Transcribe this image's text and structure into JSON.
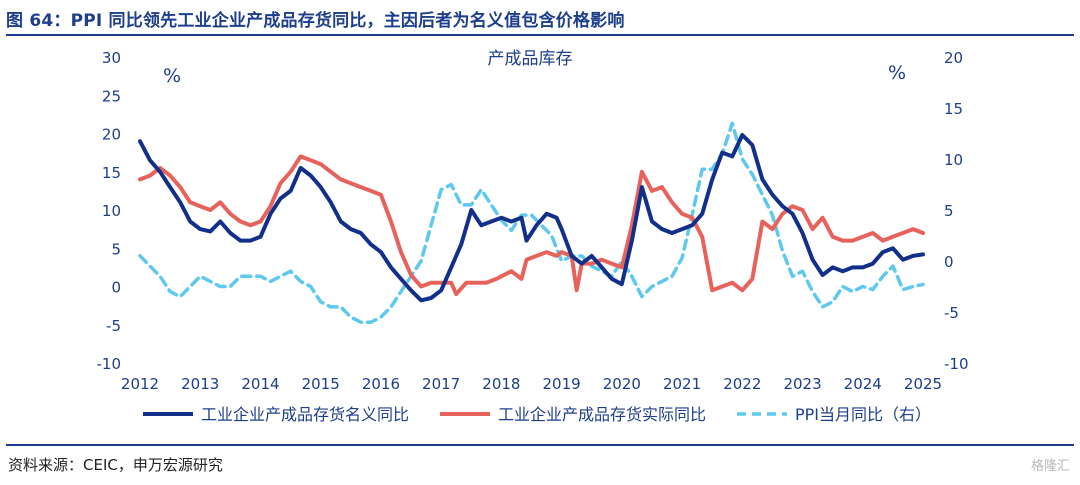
{
  "figure_title": "图 64：PPI 同比领先工业企业产成品存货同比，主因后者为名义值包含价格影响",
  "source": "资料来源：CEIC，申万宏源研究",
  "watermark": "格隆汇",
  "colors": {
    "accent": "#1d3e8a",
    "nominal": "#12308a",
    "real": "#e8625c",
    "ppi": "#5ec8ee"
  },
  "chart_data": {
    "type": "line",
    "title": "产成品库存",
    "left_unit": "%",
    "right_unit": "%",
    "x_axis": {
      "type": "date",
      "range": [
        "2012-01",
        "2025-01"
      ],
      "tick_labels": [
        "2012",
        "2013",
        "2014",
        "2015",
        "2016",
        "2017",
        "2018",
        "2019",
        "2020",
        "2021",
        "2022",
        "2023",
        "2024",
        "2025"
      ]
    },
    "y_left": {
      "range": [
        -10,
        30
      ],
      "ticks": [
        -10,
        -5,
        0,
        5,
        10,
        15,
        20,
        25,
        30
      ]
    },
    "y_right": {
      "range": [
        -10,
        20
      ],
      "ticks": [
        -10,
        -5,
        0,
        5,
        10,
        15,
        20
      ]
    },
    "grid": false,
    "legend_position": "bottom",
    "series": [
      {
        "name": "工业企业产成品存货名义同比",
        "axis": "left",
        "style": "solid",
        "points": [
          [
            "2012-01",
            19.0
          ],
          [
            "2012-03",
            16.5
          ],
          [
            "2012-05",
            15.0
          ],
          [
            "2012-07",
            13.0
          ],
          [
            "2012-09",
            11.0
          ],
          [
            "2012-11",
            8.5
          ],
          [
            "2013-01",
            7.5
          ],
          [
            "2013-03",
            7.2
          ],
          [
            "2013-05",
            8.5
          ],
          [
            "2013-07",
            7.0
          ],
          [
            "2013-09",
            6.0
          ],
          [
            "2013-11",
            6.0
          ],
          [
            "2014-01",
            6.5
          ],
          [
            "2014-03",
            9.5
          ],
          [
            "2014-05",
            11.5
          ],
          [
            "2014-07",
            12.5
          ],
          [
            "2014-09",
            15.5
          ],
          [
            "2014-11",
            14.5
          ],
          [
            "2015-01",
            13.0
          ],
          [
            "2015-03",
            11.0
          ],
          [
            "2015-05",
            8.5
          ],
          [
            "2015-07",
            7.5
          ],
          [
            "2015-09",
            7.0
          ],
          [
            "2015-11",
            5.5
          ],
          [
            "2016-01",
            4.5
          ],
          [
            "2016-03",
            2.5
          ],
          [
            "2016-05",
            1.0
          ],
          [
            "2016-07",
            -0.5
          ],
          [
            "2016-09",
            -1.8
          ],
          [
            "2016-11",
            -1.5
          ],
          [
            "2017-01",
            -0.5
          ],
          [
            "2017-03",
            2.5
          ],
          [
            "2017-05",
            5.5
          ],
          [
            "2017-07",
            10.0
          ],
          [
            "2017-09",
            8.0
          ],
          [
            "2017-11",
            8.5
          ],
          [
            "2018-01",
            9.0
          ],
          [
            "2018-03",
            8.5
          ],
          [
            "2018-05",
            9.0
          ],
          [
            "2018-06",
            6.0
          ],
          [
            "2018-08",
            8.0
          ],
          [
            "2018-10",
            9.5
          ],
          [
            "2018-12",
            9.0
          ],
          [
            "2019-01",
            7.5
          ],
          [
            "2019-03",
            4.0
          ],
          [
            "2019-05",
            3.0
          ],
          [
            "2019-07",
            4.0
          ],
          [
            "2019-09",
            2.5
          ],
          [
            "2019-11",
            1.0
          ],
          [
            "2020-01",
            0.3
          ],
          [
            "2020-03",
            6.0
          ],
          [
            "2020-05",
            13.0
          ],
          [
            "2020-07",
            8.5
          ],
          [
            "2020-09",
            7.5
          ],
          [
            "2020-11",
            7.0
          ],
          [
            "2021-01",
            7.5
          ],
          [
            "2021-03",
            8.0
          ],
          [
            "2021-05",
            9.5
          ],
          [
            "2021-07",
            14.0
          ],
          [
            "2021-09",
            17.5
          ],
          [
            "2021-11",
            17.0
          ],
          [
            "2022-01",
            19.8
          ],
          [
            "2022-03",
            18.5
          ],
          [
            "2022-05",
            14.0
          ],
          [
            "2022-07",
            12.0
          ],
          [
            "2022-09",
            10.5
          ],
          [
            "2022-11",
            9.5
          ],
          [
            "2023-01",
            7.0
          ],
          [
            "2023-03",
            3.5
          ],
          [
            "2023-05",
            1.5
          ],
          [
            "2023-07",
            2.5
          ],
          [
            "2023-09",
            2.0
          ],
          [
            "2023-11",
            2.5
          ],
          [
            "2024-01",
            2.5
          ],
          [
            "2024-03",
            3.0
          ],
          [
            "2024-05",
            4.5
          ],
          [
            "2024-07",
            5.0
          ],
          [
            "2024-09",
            3.5
          ],
          [
            "2024-11",
            4.0
          ],
          [
            "2025-01",
            4.2
          ]
        ]
      },
      {
        "name": "工业企业产成品存货实际同比",
        "axis": "left",
        "style": "solid",
        "points": [
          [
            "2012-01",
            14.0
          ],
          [
            "2012-03",
            14.5
          ],
          [
            "2012-05",
            15.5
          ],
          [
            "2012-07",
            14.5
          ],
          [
            "2012-09",
            13.0
          ],
          [
            "2012-11",
            11.0
          ],
          [
            "2013-01",
            10.5
          ],
          [
            "2013-03",
            10.0
          ],
          [
            "2013-05",
            11.0
          ],
          [
            "2013-07",
            9.5
          ],
          [
            "2013-09",
            8.5
          ],
          [
            "2013-11",
            8.0
          ],
          [
            "2014-01",
            8.5
          ],
          [
            "2014-03",
            10.5
          ],
          [
            "2014-05",
            13.5
          ],
          [
            "2014-07",
            15.0
          ],
          [
            "2014-09",
            17.0
          ],
          [
            "2014-11",
            16.5
          ],
          [
            "2015-01",
            16.0
          ],
          [
            "2015-03",
            15.0
          ],
          [
            "2015-05",
            14.0
          ],
          [
            "2015-07",
            13.5
          ],
          [
            "2015-09",
            13.0
          ],
          [
            "2015-11",
            12.5
          ],
          [
            "2016-01",
            12.0
          ],
          [
            "2016-03",
            8.5
          ],
          [
            "2016-05",
            4.5
          ],
          [
            "2016-07",
            1.5
          ],
          [
            "2016-09",
            0.0
          ],
          [
            "2016-11",
            0.5
          ],
          [
            "2017-01",
            0.5
          ],
          [
            "2017-03",
            0.5
          ],
          [
            "2017-04",
            -1.0
          ],
          [
            "2017-06",
            0.5
          ],
          [
            "2017-08",
            0.5
          ],
          [
            "2017-10",
            0.5
          ],
          [
            "2017-12",
            1.0
          ],
          [
            "2018-03",
            2.0
          ],
          [
            "2018-05",
            1.0
          ],
          [
            "2018-06",
            3.5
          ],
          [
            "2018-08",
            4.0
          ],
          [
            "2018-10",
            4.5
          ],
          [
            "2018-12",
            4.0
          ],
          [
            "2019-01",
            4.5
          ],
          [
            "2019-03",
            4.0
          ],
          [
            "2019-04",
            -0.5
          ],
          [
            "2019-05",
            3.0
          ],
          [
            "2019-07",
            3.0
          ],
          [
            "2019-09",
            3.5
          ],
          [
            "2019-11",
            3.0
          ],
          [
            "2020-01",
            2.5
          ],
          [
            "2020-03",
            8.0
          ],
          [
            "2020-05",
            15.0
          ],
          [
            "2020-07",
            12.5
          ],
          [
            "2020-09",
            13.0
          ],
          [
            "2020-11",
            11.0
          ],
          [
            "2021-01",
            9.5
          ],
          [
            "2021-03",
            9.0
          ],
          [
            "2021-05",
            6.5
          ],
          [
            "2021-07",
            -0.5
          ],
          [
            "2021-09",
            0.0
          ],
          [
            "2021-11",
            0.5
          ],
          [
            "2022-01",
            -0.5
          ],
          [
            "2022-03",
            1.0
          ],
          [
            "2022-05",
            8.5
          ],
          [
            "2022-07",
            7.5
          ],
          [
            "2022-09",
            9.5
          ],
          [
            "2022-11",
            10.5
          ],
          [
            "2023-01",
            10.0
          ],
          [
            "2023-03",
            7.5
          ],
          [
            "2023-05",
            9.0
          ],
          [
            "2023-07",
            6.5
          ],
          [
            "2023-09",
            6.0
          ],
          [
            "2023-11",
            6.0
          ],
          [
            "2024-01",
            6.5
          ],
          [
            "2024-03",
            7.0
          ],
          [
            "2024-05",
            6.0
          ],
          [
            "2024-07",
            6.5
          ],
          [
            "2024-09",
            7.0
          ],
          [
            "2024-11",
            7.5
          ],
          [
            "2025-01",
            7.0
          ]
        ]
      },
      {
        "name": "PPI当月同比（右）",
        "axis": "right",
        "style": "dashed",
        "points": [
          [
            "2012-01",
            0.5
          ],
          [
            "2012-03",
            -0.5
          ],
          [
            "2012-05",
            -1.5
          ],
          [
            "2012-07",
            -3.0
          ],
          [
            "2012-09",
            -3.5
          ],
          [
            "2012-11",
            -2.5
          ],
          [
            "2013-01",
            -1.5
          ],
          [
            "2013-03",
            -2.0
          ],
          [
            "2013-05",
            -2.5
          ],
          [
            "2013-07",
            -2.5
          ],
          [
            "2013-09",
            -1.5
          ],
          [
            "2013-11",
            -1.5
          ],
          [
            "2014-01",
            -1.5
          ],
          [
            "2014-03",
            -2.0
          ],
          [
            "2014-05",
            -1.5
          ],
          [
            "2014-07",
            -1.0
          ],
          [
            "2014-09",
            -2.0
          ],
          [
            "2014-11",
            -2.5
          ],
          [
            "2015-01",
            -4.0
          ],
          [
            "2015-03",
            -4.5
          ],
          [
            "2015-05",
            -4.5
          ],
          [
            "2015-07",
            -5.5
          ],
          [
            "2015-09",
            -6.0
          ],
          [
            "2015-11",
            -6.0
          ],
          [
            "2016-01",
            -5.5
          ],
          [
            "2016-03",
            -4.5
          ],
          [
            "2016-05",
            -3.0
          ],
          [
            "2016-07",
            -1.5
          ],
          [
            "2016-09",
            0.0
          ],
          [
            "2016-11",
            3.5
          ],
          [
            "2017-01",
            7.0
          ],
          [
            "2017-03",
            7.5
          ],
          [
            "2017-05",
            5.5
          ],
          [
            "2017-07",
            5.5
          ],
          [
            "2017-09",
            7.0
          ],
          [
            "2017-11",
            5.5
          ],
          [
            "2018-01",
            4.0
          ],
          [
            "2018-03",
            3.0
          ],
          [
            "2018-05",
            4.5
          ],
          [
            "2018-07",
            4.5
          ],
          [
            "2018-09",
            3.5
          ],
          [
            "2018-11",
            2.5
          ],
          [
            "2019-01",
            0.0
          ],
          [
            "2019-03",
            0.5
          ],
          [
            "2019-05",
            0.5
          ],
          [
            "2019-07",
            -0.5
          ],
          [
            "2019-09",
            -1.0
          ],
          [
            "2019-11",
            -1.5
          ],
          [
            "2020-01",
            0.0
          ],
          [
            "2020-03",
            -1.5
          ],
          [
            "2020-05",
            -3.5
          ],
          [
            "2020-07",
            -2.5
          ],
          [
            "2020-09",
            -2.0
          ],
          [
            "2020-11",
            -1.5
          ],
          [
            "2021-01",
            0.3
          ],
          [
            "2021-03",
            4.5
          ],
          [
            "2021-05",
            9.0
          ],
          [
            "2021-07",
            9.0
          ],
          [
            "2021-09",
            10.5
          ],
          [
            "2021-11",
            13.5
          ],
          [
            "2022-01",
            10.0
          ],
          [
            "2022-03",
            8.5
          ],
          [
            "2022-05",
            6.5
          ],
          [
            "2022-07",
            4.5
          ],
          [
            "2022-09",
            1.0
          ],
          [
            "2022-11",
            -1.5
          ],
          [
            "2023-01",
            -1.0
          ],
          [
            "2023-03",
            -3.0
          ],
          [
            "2023-05",
            -4.5
          ],
          [
            "2023-07",
            -4.0
          ],
          [
            "2023-09",
            -2.5
          ],
          [
            "2023-11",
            -3.0
          ],
          [
            "2024-01",
            -2.5
          ],
          [
            "2024-03",
            -2.8
          ],
          [
            "2024-05",
            -1.5
          ],
          [
            "2024-07",
            -0.5
          ],
          [
            "2024-09",
            -2.8
          ],
          [
            "2024-11",
            -2.5
          ],
          [
            "2025-01",
            -2.3
          ]
        ]
      }
    ]
  }
}
